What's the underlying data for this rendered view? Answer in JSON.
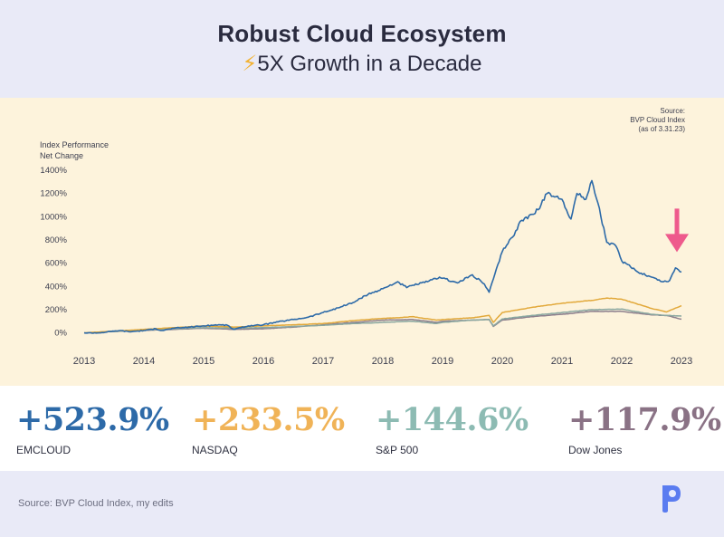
{
  "header": {
    "title": "Robust Cloud Ecosystem",
    "subtitle_icon": "⚡",
    "subtitle": "5X Growth in a Decade"
  },
  "chart_data": {
    "type": "line",
    "ylabel": "Index Performance\nNet Change",
    "source_note": [
      "Source:",
      "BVP Cloud Index",
      "(as of 3.31.23)"
    ],
    "x_ticks": [
      "2013",
      "2014",
      "2015",
      "2016",
      "2017",
      "2018",
      "2019",
      "2020",
      "2021",
      "2022",
      "2023"
    ],
    "y_ticks": [
      "0%",
      "200%",
      "400%",
      "600%",
      "800%",
      "1000%",
      "1200%",
      "1400%"
    ],
    "xlim": [
      2013.0,
      2023.0
    ],
    "ylim": [
      -50,
      1400
    ],
    "annotation": "arrow pointing at EMCLOUD latest value",
    "series": [
      {
        "name": "EMCLOUD",
        "color": "#2d6aa8",
        "x": [
          2013.0,
          2013.25,
          2013.5,
          2013.6,
          2013.75,
          2014.0,
          2014.2,
          2014.3,
          2014.5,
          2014.75,
          2015.0,
          2015.25,
          2015.4,
          2015.5,
          2015.75,
          2016.0,
          2016.25,
          2016.5,
          2016.75,
          2017.0,
          2017.25,
          2017.5,
          2017.75,
          2018.0,
          2018.25,
          2018.4,
          2018.5,
          2018.75,
          2018.95,
          2019.0,
          2019.25,
          2019.5,
          2019.7,
          2019.78,
          2020.0,
          2020.12,
          2020.2,
          2020.3,
          2020.5,
          2020.6,
          2020.75,
          2021.0,
          2021.15,
          2021.25,
          2021.4,
          2021.5,
          2021.6,
          2021.75,
          2021.9,
          2022.0,
          2022.25,
          2022.5,
          2022.7,
          2022.8,
          2022.9,
          2023.0
        ],
        "values": [
          0,
          0,
          15,
          20,
          10,
          20,
          35,
          20,
          40,
          50,
          60,
          70,
          65,
          30,
          60,
          70,
          95,
          115,
          135,
          175,
          215,
          260,
          330,
          380,
          440,
          390,
          410,
          440,
          480,
          470,
          430,
          500,
          420,
          350,
          700,
          800,
          840,
          960,
          1020,
          1060,
          1200,
          1150,
          980,
          1200,
          1150,
          1310,
          1120,
          780,
          750,
          620,
          530,
          480,
          440,
          450,
          560,
          524
        ]
      },
      {
        "name": "NASDAQ",
        "color": "#e2a93b",
        "x": [
          2013.0,
          2013.5,
          2014.0,
          2014.5,
          2015.0,
          2015.5,
          2016.0,
          2016.5,
          2017.0,
          2017.5,
          2018.0,
          2018.25,
          2018.5,
          2018.9,
          2019.0,
          2019.5,
          2019.78,
          2019.85,
          2020.0,
          2020.5,
          2021.0,
          2021.5,
          2021.75,
          2022.0,
          2022.25,
          2022.5,
          2022.75,
          2023.0
        ],
        "values": [
          0,
          15,
          30,
          45,
          60,
          50,
          60,
          70,
          80,
          105,
          125,
          130,
          140,
          110,
          115,
          130,
          150,
          90,
          175,
          220,
          255,
          280,
          300,
          290,
          250,
          210,
          180,
          234
        ]
      },
      {
        "name": "S&P 500",
        "color": "#8aa7a0",
        "x": [
          2013.0,
          2013.5,
          2014.0,
          2014.5,
          2015.0,
          2015.5,
          2016.0,
          2016.5,
          2017.0,
          2017.5,
          2018.0,
          2018.5,
          2018.9,
          2019.0,
          2019.5,
          2019.78,
          2019.85,
          2020.0,
          2020.5,
          2021.0,
          2021.5,
          2022.0,
          2022.5,
          2022.75,
          2023.0
        ],
        "values": [
          0,
          12,
          25,
          35,
          45,
          40,
          45,
          55,
          65,
          80,
          90,
          100,
          80,
          90,
          110,
          115,
          60,
          120,
          150,
          175,
          200,
          205,
          160,
          150,
          145
        ]
      },
      {
        "name": "Dow Jones",
        "color": "#8d7f8d",
        "x": [
          2013.0,
          2013.5,
          2014.0,
          2014.5,
          2015.0,
          2015.5,
          2016.0,
          2016.5,
          2017.0,
          2017.5,
          2018.0,
          2018.5,
          2018.9,
          2019.0,
          2019.5,
          2019.78,
          2019.85,
          2020.0,
          2020.5,
          2021.0,
          2021.5,
          2022.0,
          2022.5,
          2022.75,
          2023.0
        ],
        "values": [
          0,
          12,
          22,
          30,
          40,
          30,
          35,
          50,
          70,
          90,
          110,
          115,
          90,
          100,
          110,
          115,
          55,
          110,
          140,
          160,
          185,
          185,
          155,
          150,
          118
        ]
      }
    ]
  },
  "stats": [
    {
      "value": "+523.9%",
      "label": "EMCLOUD",
      "color": "#2d6aa8"
    },
    {
      "value": "+233.5%",
      "label": "NASDAQ",
      "color": "#f0b357"
    },
    {
      "value": "+144.6%",
      "label": "S&P 500",
      "color": "#8dbbb3"
    },
    {
      "value": "+117.9%",
      "label": "Dow Jones",
      "color": "#8a7285"
    }
  ],
  "footer": {
    "source": "Source: BVP Cloud Index, my edits"
  },
  "colors": {
    "background": "#e9eaf7",
    "panel": "#fdf3dc",
    "arrow": "#ee5a8c",
    "logo": "#5a7cf0"
  }
}
